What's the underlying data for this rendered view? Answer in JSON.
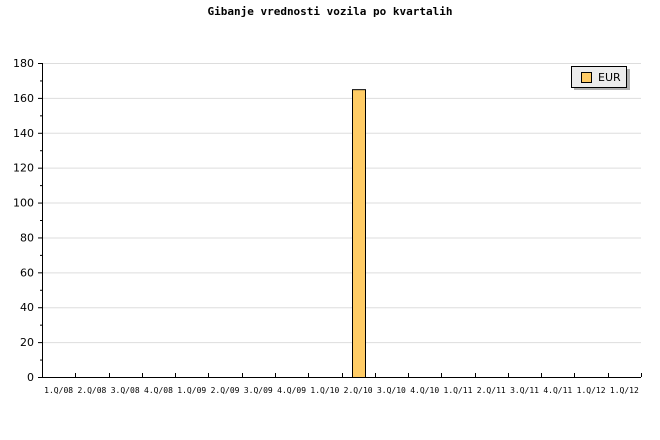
{
  "chart_data": {
    "type": "bar",
    "title": "Gibanje vrednosti vozila po kvartalih",
    "xlabel": "",
    "ylabel": "",
    "categories": [
      "1.Q/08",
      "2.Q/08",
      "3.Q/08",
      "4.Q/08",
      "1.Q/09",
      "2.Q/09",
      "3.Q/09",
      "4.Q/09",
      "1.Q/10",
      "2.Q/10",
      "3.Q/10",
      "4.Q/10",
      "1.Q/11",
      "2.Q/11",
      "3.Q/11",
      "4.Q/11",
      "1.Q/12",
      "1.Q/12"
    ],
    "series": [
      {
        "name": "EUR",
        "color": "#ffcc66",
        "values": [
          0,
          0,
          0,
          0,
          0,
          0,
          0,
          0,
          0,
          165,
          0,
          0,
          0,
          0,
          0,
          0,
          0,
          0
        ]
      }
    ],
    "ylim": [
      0,
      180
    ],
    "yticks": [
      0,
      20,
      40,
      60,
      80,
      100,
      120,
      140,
      160,
      180
    ],
    "grid": true,
    "legend": "top-right"
  }
}
